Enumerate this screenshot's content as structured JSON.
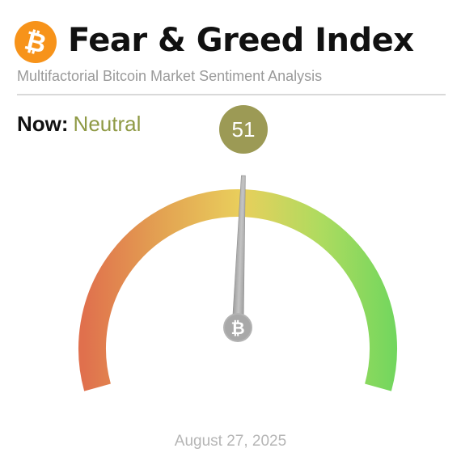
{
  "header": {
    "title": "Fear & Greed Index",
    "subtitle": "Multifactorial Bitcoin Market Sentiment Analysis",
    "logo_icon": "bitcoin-icon"
  },
  "sentiment": {
    "now_label": "Now:",
    "classification": "Neutral",
    "value": "51",
    "value_numeric": 51,
    "scale_min": 0,
    "scale_max": 100
  },
  "footer": {
    "date": "August 27, 2025"
  },
  "colors": {
    "brand_orange": "#f7931a",
    "neutral_accent": "#8f9a45",
    "badge_bg": "#9c9a55",
    "gauge_fear": "#e0704d",
    "gauge_mid": "#e9cf5c",
    "gauge_greed": "#6fd65e",
    "needle": "#a6a6a6"
  }
}
